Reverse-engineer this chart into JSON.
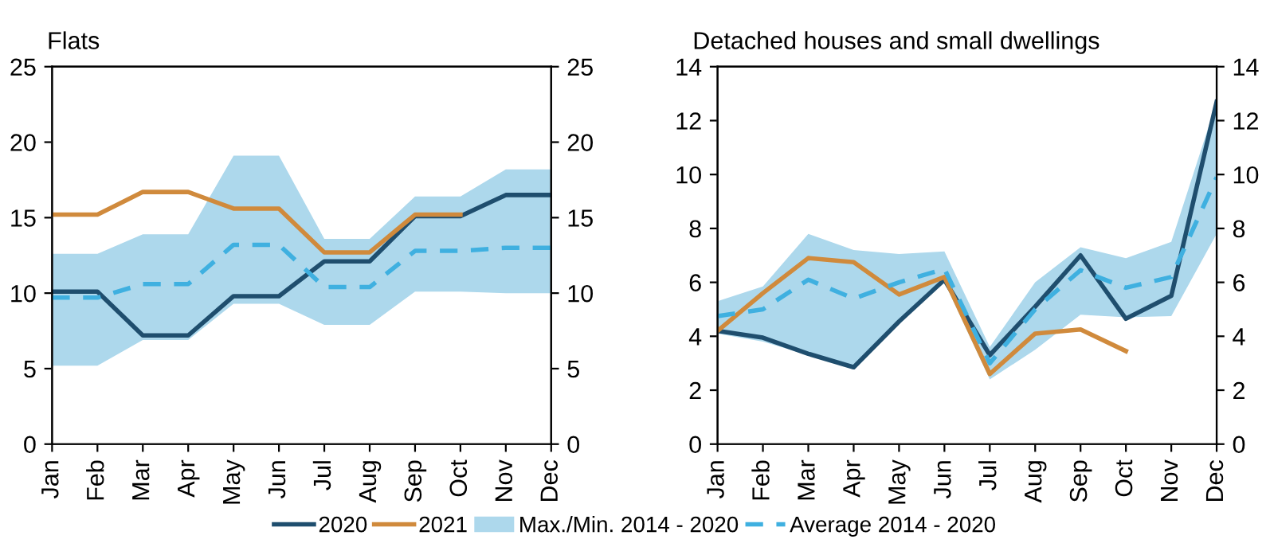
{
  "chart_data": [
    {
      "type": "line",
      "title": "Flats",
      "categories": [
        "Jan",
        "Feb",
        "Mar",
        "Apr",
        "May",
        "Jun",
        "Jul",
        "Aug",
        "Sep",
        "Oct",
        "Nov",
        "Dec"
      ],
      "ylim": [
        0,
        25
      ],
      "yticks": [
        0,
        5,
        10,
        15,
        20,
        25
      ],
      "y2lim": [
        0,
        25
      ],
      "y2ticks": [
        0,
        5,
        10,
        15,
        20,
        25
      ],
      "grid": false,
      "legend": "bottom",
      "series": [
        {
          "name": "Max./Min. 2014 - 2020",
          "color": "#add8ec",
          "values": [
            null,
            null,
            null,
            null,
            null,
            null,
            null,
            null,
            null,
            null,
            null,
            null
          ],
          "lower": [
            5.2,
            5.2,
            6.9,
            6.9,
            9.3,
            9.3,
            7.9,
            7.9,
            10.1,
            10.1,
            10.0,
            10.0
          ],
          "upper": [
            12.6,
            12.6,
            13.9,
            13.9,
            19.1,
            19.1,
            13.6,
            13.6,
            16.4,
            16.4,
            18.2,
            18.2
          ]
        },
        {
          "name": "2020",
          "color": "#1f4e6e",
          "line_style": "solid",
          "values": [
            10.1,
            10.1,
            7.2,
            7.2,
            9.8,
            9.8,
            12.1,
            12.1,
            15.1,
            15.1,
            16.5,
            16.5
          ]
        },
        {
          "name": "2021",
          "color": "#d08a3c",
          "line_style": "solid",
          "values": [
            15.2,
            15.2,
            16.7,
            16.7,
            15.6,
            15.6,
            12.7,
            12.7,
            15.2,
            15.2,
            null,
            null
          ]
        },
        {
          "name": "Average 2014 - 2020",
          "color": "#3fb0e0",
          "line_style": "dashed",
          "values": [
            9.7,
            9.7,
            10.6,
            10.6,
            13.2,
            13.2,
            10.4,
            10.4,
            12.8,
            12.8,
            13.0,
            13.0
          ]
        }
      ]
    },
    {
      "type": "line",
      "title": "Detached houses and small dwellings",
      "categories": [
        "Jan",
        "Feb",
        "Mar",
        "Apr",
        "May",
        "Jun",
        "Jul",
        "Aug",
        "Sep",
        "Oct",
        "Nov",
        "Dec"
      ],
      "ylim": [
        0,
        14
      ],
      "yticks": [
        0,
        2,
        4,
        6,
        8,
        10,
        12,
        14
      ],
      "y2lim": [
        0,
        14
      ],
      "y2ticks": [
        0,
        2,
        4,
        6,
        8,
        10,
        12,
        14
      ],
      "grid": false,
      "series": [
        {
          "color": "#add8ec",
          "values": [
            null,
            null,
            null,
            null,
            null,
            null,
            null,
            null,
            null,
            null,
            null,
            null
          ],
          "lower": [
            4.1,
            3.8,
            3.3,
            2.8,
            4.5,
            6.0,
            2.4,
            3.5,
            4.8,
            4.7,
            4.75,
            7.8
          ],
          "upper": [
            5.3,
            5.85,
            7.8,
            7.2,
            7.05,
            7.15,
            3.6,
            6.0,
            7.3,
            6.9,
            7.5,
            12.7
          ]
        },
        {
          "color": "#1f4e6e",
          "line_style": "solid",
          "values": [
            4.2,
            3.95,
            3.35,
            2.85,
            4.55,
            6.1,
            3.3,
            5.1,
            7.0,
            4.65,
            5.5,
            12.7
          ]
        },
        {
          "color": "#d08a3c",
          "line_style": "solid",
          "values": [
            4.2,
            5.6,
            6.9,
            6.75,
            5.55,
            6.2,
            2.6,
            4.1,
            4.25,
            3.45,
            null,
            null
          ]
        },
        {
          "color": "#3fb0e0",
          "line_style": "dashed",
          "values": [
            4.75,
            5.0,
            6.1,
            5.4,
            6.0,
            6.5,
            3.0,
            5.0,
            6.45,
            5.8,
            6.2,
            9.9
          ]
        }
      ]
    }
  ]
}
